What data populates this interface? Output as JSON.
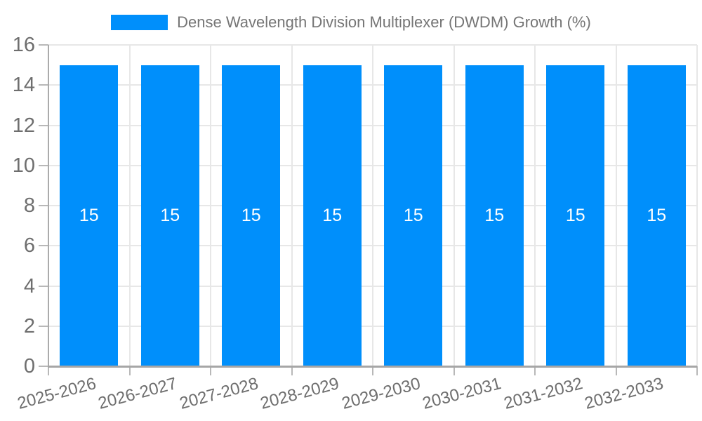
{
  "chart_data": {
    "type": "bar",
    "title": "",
    "legend": {
      "position": "top",
      "label": "Dense Wavelength Division Multiplexer (DWDM) Growth (%)"
    },
    "categories": [
      "2025-2026",
      "2026-2027",
      "2027-2028",
      "2028-2029",
      "2029-2030",
      "2030-2031",
      "2031-2032",
      "2032-2033"
    ],
    "series": [
      {
        "name": "Dense Wavelength Division Multiplexer (DWDM) Growth (%)",
        "values": [
          15,
          15,
          15,
          15,
          15,
          15,
          15,
          15
        ]
      }
    ],
    "xlabel": "",
    "ylabel": "",
    "ylim": [
      0,
      16
    ],
    "yticks": [
      0,
      2,
      4,
      6,
      8,
      10,
      12,
      14,
      16
    ],
    "grid": true,
    "xlabel_rotation_deg": -15
  },
  "colors": {
    "bar": "#008FFB",
    "grid": "#e7e7e7",
    "y_axis_line": "#ababab",
    "zero_line": "#a6a6a6",
    "tick_mark": "#b8b8b8",
    "axis_text": "#6e6e6e",
    "legend_text": "#757575",
    "bar_label_text": "#ffffff",
    "background": "#ffffff"
  }
}
